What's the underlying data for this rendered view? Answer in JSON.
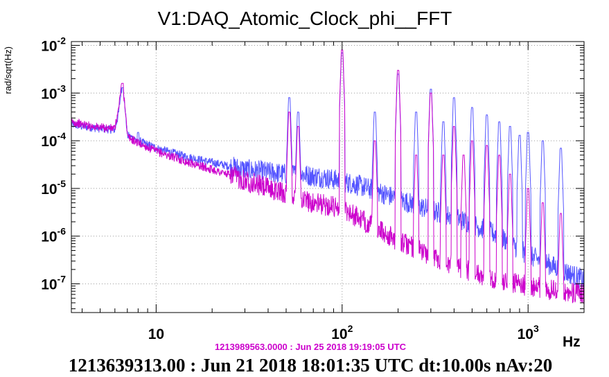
{
  "chart_data": {
    "type": "line",
    "title": "V1:DAQ_Atomic_Clock_phi__FFT",
    "ylabel": "rad/sqrt(Hz)",
    "xlabel": "Hz",
    "xscale": "log",
    "yscale": "log",
    "xlim": [
      3.5,
      2000
    ],
    "ylim": [
      2.5e-08,
      0.012
    ],
    "grid": true,
    "x_ticks": [
      {
        "value": 10,
        "base": "10",
        "exp": ""
      },
      {
        "value": 100,
        "base": "10",
        "exp": "2"
      },
      {
        "value": 1000,
        "base": "10",
        "exp": "3"
      }
    ],
    "y_ticks": [
      {
        "value": 1e-07,
        "base": "10",
        "exp": "-7"
      },
      {
        "value": 1e-06,
        "base": "10",
        "exp": "-6"
      },
      {
        "value": 1e-05,
        "base": "10",
        "exp": "-5"
      },
      {
        "value": 0.0001,
        "base": "10",
        "exp": "-4"
      },
      {
        "value": 0.001,
        "base": "10",
        "exp": "-3"
      },
      {
        "value": 0.01,
        "base": "10",
        "exp": "-2"
      }
    ],
    "series": [
      {
        "color": "#5555ff",
        "x": [
          3.5,
          4,
          5,
          6,
          6.3,
          6.5,
          6.8,
          7,
          8,
          10,
          15,
          20,
          30,
          40,
          50,
          60,
          70,
          80,
          100,
          120,
          150,
          200,
          300,
          400,
          500,
          700,
          1000,
          1500,
          2000
        ],
        "y": [
          0.00022,
          0.0002,
          0.00018,
          0.00017,
          0.0004,
          0.0013,
          0.0005,
          0.00013,
          0.0001,
          7e-05,
          4.5e-05,
          3.5e-05,
          2.5e-05,
          2.2e-05,
          2e-05,
          2e-05,
          1.8e-05,
          1.7e-05,
          1.4e-05,
          1.2e-05,
          9e-06,
          6e-06,
          3.5e-06,
          2.5e-06,
          1.8e-06,
          1e-06,
          4e-07,
          2e-07,
          1.2e-07
        ],
        "peaks": [
          [
            6.6,
            0.0013
          ],
          [
            8,
            0.00015
          ],
          [
            52,
            0.0008
          ],
          [
            58,
            0.0004
          ],
          [
            100,
            0.007
          ],
          [
            150,
            0.0004
          ],
          [
            200,
            0.0025
          ],
          [
            250,
            0.0004
          ],
          [
            300,
            0.0012
          ],
          [
            350,
            0.00025
          ],
          [
            400,
            0.0008
          ],
          [
            500,
            0.0005
          ],
          [
            600,
            0.00035
          ],
          [
            700,
            0.00025
          ],
          [
            800,
            0.0002
          ],
          [
            900,
            0.00013
          ],
          [
            1000,
            0.00015
          ],
          [
            1200,
            0.0001
          ],
          [
            1500,
            7e-05
          ]
        ]
      },
      {
        "color": "#cc00cc",
        "x": [
          3.5,
          4,
          5,
          6,
          6.3,
          6.5,
          6.8,
          7,
          8,
          10,
          15,
          20,
          30,
          40,
          50,
          60,
          70,
          80,
          100,
          120,
          150,
          200,
          300,
          400,
          500,
          700,
          1000,
          1500,
          2000
        ],
        "y": [
          0.00025,
          0.00022,
          0.00019,
          0.00018,
          0.0005,
          0.0016,
          0.0006,
          0.00012,
          9e-05,
          6e-05,
          3.5e-05,
          2.5e-05,
          1.5e-05,
          1e-05,
          8e-06,
          6e-06,
          5e-06,
          4.5e-06,
          4e-06,
          2.5e-06,
          1.5e-06,
          8e-07,
          4e-07,
          2.5e-07,
          1.8e-07,
          1.2e-07,
          9e-08,
          7e-08,
          6e-08
        ],
        "peaks": [
          [
            6.6,
            0.0016
          ],
          [
            52,
            0.0004
          ],
          [
            58,
            0.0002
          ],
          [
            100,
            0.008
          ],
          [
            150,
            0.0001
          ],
          [
            200,
            0.003
          ],
          [
            250,
            5e-05
          ],
          [
            300,
            0.001
          ],
          [
            350,
            5e-05
          ],
          [
            400,
            0.0002
          ],
          [
            450,
            5e-05
          ],
          [
            500,
            0.0001
          ],
          [
            600,
            8e-05
          ],
          [
            700,
            5e-05
          ],
          [
            800,
            2e-05
          ],
          [
            1000,
            1e-05
          ],
          [
            1200,
            5e-06
          ],
          [
            1500,
            3e-06
          ]
        ]
      }
    ]
  },
  "reference_label": "1213989563.0000 : Jun 25 2018 19:19:05 UTC",
  "footer": "1213639313.00 : Jun 21 2018 18:01:35 UTC dt:10.00s nAv:20"
}
